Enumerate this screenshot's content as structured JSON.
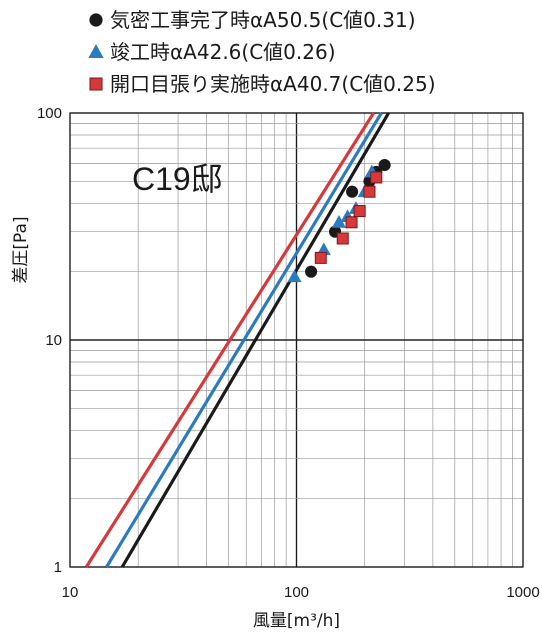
{
  "chart_data": {
    "type": "scatter",
    "title": "",
    "xlabel": "風量[m³/h]",
    "ylabel": "差圧[Pa]",
    "x_scale": "log",
    "y_scale": "log",
    "xlim": [
      10,
      1000
    ],
    "ylim": [
      1,
      100
    ],
    "x_ticks": [
      "10",
      "100",
      "1000"
    ],
    "y_ticks": [
      "1",
      "10",
      "100"
    ],
    "grid": true,
    "legend_position": "top",
    "annotation": "C19邸",
    "series": [
      {
        "name": "気密工事完了時αA50.5(C値0.31)",
        "color": "#1a1a1a",
        "marker": "circle",
        "points": [
          [
            116,
            20
          ],
          [
            148,
            30
          ],
          [
            176,
            45
          ],
          [
            210,
            50
          ],
          [
            225,
            55
          ],
          [
            245,
            59
          ]
        ],
        "fit_line": [
          [
            17,
            1
          ],
          [
            255,
            100
          ]
        ]
      },
      {
        "name": "竣工時αA42.6(C値0.26)",
        "color": "#2b7bbf",
        "marker": "triangle",
        "points": [
          [
            98,
            19
          ],
          [
            132,
            25
          ],
          [
            154,
            33
          ],
          [
            168,
            35
          ],
          [
            183,
            38
          ],
          [
            200,
            45
          ],
          [
            215,
            55
          ]
        ],
        "fit_line": [
          [
            14.5,
            1
          ],
          [
            237,
            100
          ]
        ]
      },
      {
        "name": "開口目張り実施時αA40.7(C値0.25)",
        "color": "#d6393a",
        "marker": "square",
        "points": [
          [
            128,
            23
          ],
          [
            160,
            28
          ],
          [
            175,
            33
          ],
          [
            190,
            37
          ],
          [
            210,
            45
          ],
          [
            225,
            52
          ]
        ],
        "fit_line": [
          [
            11.8,
            1
          ],
          [
            219,
            100
          ]
        ]
      }
    ]
  }
}
